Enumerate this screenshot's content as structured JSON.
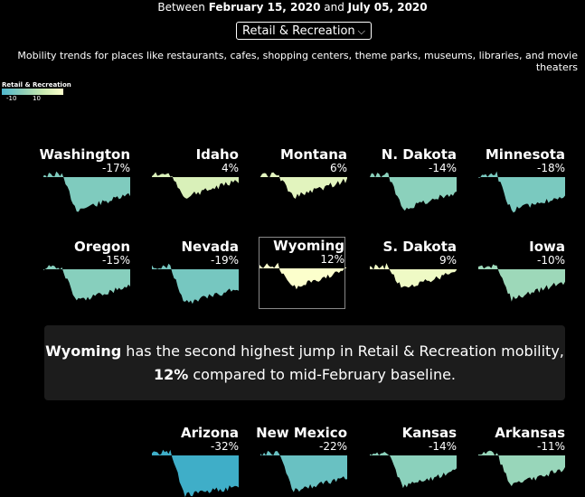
{
  "header": {
    "prefix": "Between",
    "start_date": "February 15, 2020",
    "and_word": "and",
    "end_date": "July 05, 2020"
  },
  "category_select": {
    "selected": "Retail & Recreation"
  },
  "description": "Mobility trends for places like restaurants, cafes, shopping centers, theme parks, museums, libraries, and movie theaters",
  "legend": {
    "title": "Retail & Recreation",
    "ticks": [
      "-10",
      "10"
    ]
  },
  "tooltip": {
    "state": "Wyoming",
    "text_mid": "has the second highest jump in Retail & Recreation mobility,",
    "value": "12%",
    "text_end": "compared to mid-February baseline."
  },
  "chart_data": {
    "type": "area",
    "title": "",
    "xlabel": "",
    "ylabel": "",
    "series": [
      {
        "name": "Washington",
        "change": "-17%",
        "value": -17
      },
      {
        "name": "Idaho",
        "change": "4%",
        "value": 4
      },
      {
        "name": "Montana",
        "change": "6%",
        "value": 6
      },
      {
        "name": "N. Dakota",
        "change": "-14%",
        "value": -14
      },
      {
        "name": "Minnesota",
        "change": "-18%",
        "value": -18
      },
      {
        "name": "Oregon",
        "change": "-15%",
        "value": -15
      },
      {
        "name": "Nevada",
        "change": "-19%",
        "value": -19
      },
      {
        "name": "Wyoming",
        "change": "12%",
        "value": 12
      },
      {
        "name": "S. Dakota",
        "change": "9%",
        "value": 9
      },
      {
        "name": "Iowa",
        "change": "-10%",
        "value": -10
      },
      {
        "name": "Arizona",
        "change": "-32%",
        "value": -32
      },
      {
        "name": "New Mexico",
        "change": "-22%",
        "value": -22
      },
      {
        "name": "Kansas",
        "change": "-14%",
        "value": -14
      },
      {
        "name": "Arkansas",
        "change": "-11%",
        "value": -11
      }
    ]
  }
}
